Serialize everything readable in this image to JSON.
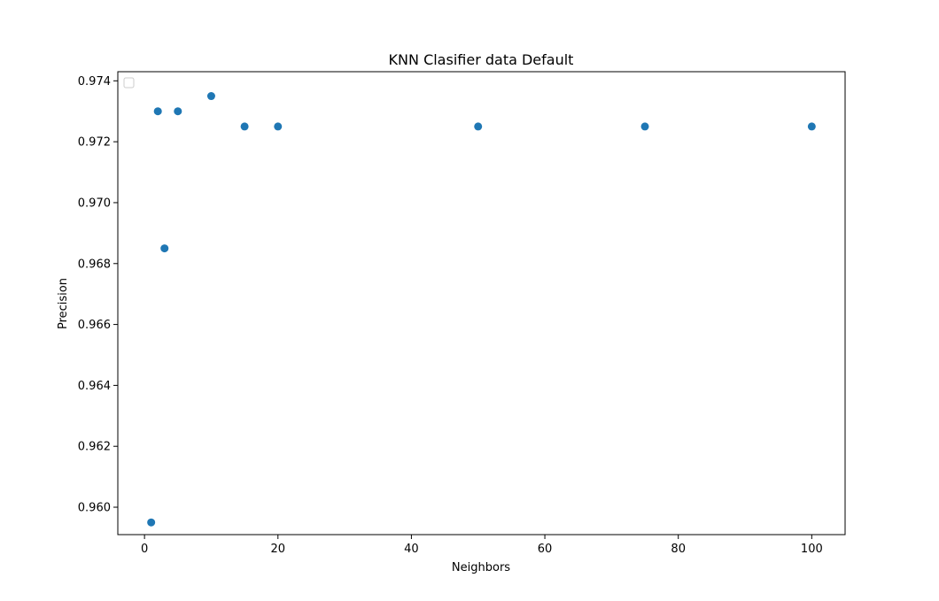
{
  "chart_data": {
    "type": "scatter",
    "title": "KNN Clasifier data Default",
    "xlabel": "Neighbors",
    "ylabel": "Precision",
    "xlim": [
      -4,
      105
    ],
    "ylim": [
      0.9591,
      0.9743
    ],
    "xticks": [
      0,
      20,
      40,
      60,
      80,
      100
    ],
    "xtick_labels": [
      "0",
      "20",
      "40",
      "60",
      "80",
      "100"
    ],
    "yticks": [
      0.96,
      0.962,
      0.964,
      0.966,
      0.968,
      0.97,
      0.972,
      0.974
    ],
    "ytick_labels": [
      "0.960",
      "0.962",
      "0.964",
      "0.966",
      "0.968",
      "0.970",
      "0.972",
      "0.974"
    ],
    "grid": false,
    "legend": "upper-left, empty",
    "color": "#1f77b4",
    "points": [
      {
        "x": 1,
        "y": 0.9595
      },
      {
        "x": 2,
        "y": 0.973
      },
      {
        "x": 3,
        "y": 0.9685
      },
      {
        "x": 5,
        "y": 0.973
      },
      {
        "x": 10,
        "y": 0.9735
      },
      {
        "x": 15,
        "y": 0.9725
      },
      {
        "x": 20,
        "y": 0.9725
      },
      {
        "x": 50,
        "y": 0.9725
      },
      {
        "x": 75,
        "y": 0.9725
      },
      {
        "x": 100,
        "y": 0.9725
      }
    ]
  }
}
